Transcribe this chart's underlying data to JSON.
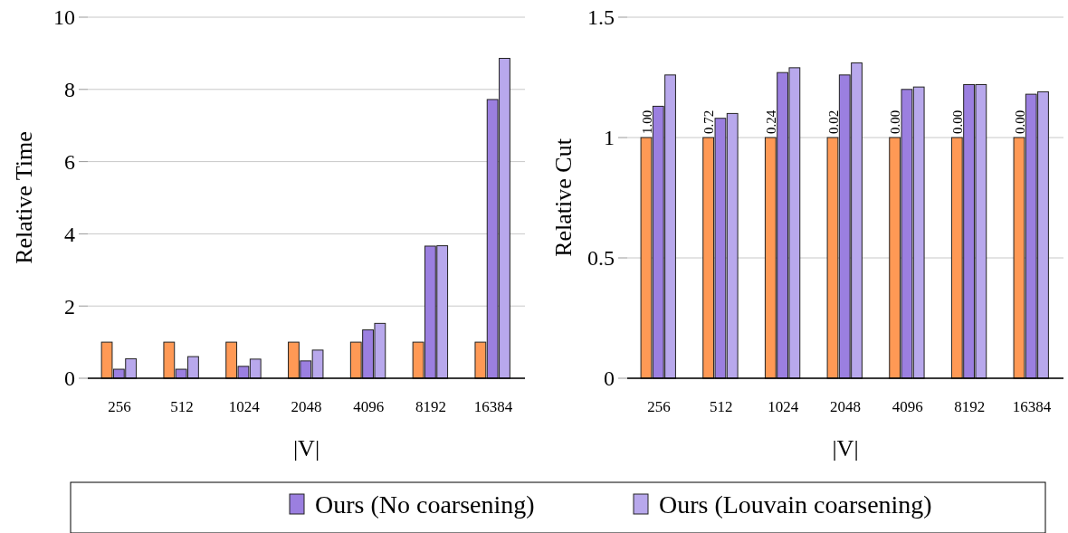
{
  "chart_data": [
    {
      "type": "bar",
      "xlabel": "|V|",
      "ylabel": "Relative Time",
      "categories": [
        "256",
        "512",
        "1024",
        "2048",
        "4096",
        "8192",
        "16384"
      ],
      "ylim": [
        0,
        10
      ],
      "yticks": [
        0,
        2,
        4,
        6,
        8,
        10
      ],
      "grid": "y",
      "legend": "bottom",
      "series": [
        {
          "color": "#ff9955",
          "values": [
            1,
            1,
            1,
            1,
            1,
            1,
            1
          ]
        },
        {
          "name": "Ours (No coarsening)",
          "color": "#9b7fe0",
          "values": [
            0.25,
            0.25,
            0.33,
            0.48,
            1.34,
            3.66,
            7.72
          ]
        },
        {
          "name": "Ours (Louvain coarsening)",
          "color": "#b8a8ec",
          "values": [
            0.54,
            0.6,
            0.53,
            0.78,
            1.52,
            3.67,
            8.86
          ]
        }
      ]
    },
    {
      "type": "bar",
      "xlabel": "|V|",
      "ylabel": "Relative Cut",
      "categories": [
        "256",
        "512",
        "1024",
        "2048",
        "4096",
        "8192",
        "16384"
      ],
      "ylim": [
        0,
        1.5
      ],
      "yticks": [
        0,
        0.5,
        1,
        1.5
      ],
      "grid": "y",
      "series": [
        {
          "color": "#ff9955",
          "values": [
            1,
            1,
            1,
            1,
            1,
            1,
            1
          ]
        },
        {
          "color": "#9b7fe0",
          "values": [
            1.13,
            1.08,
            1.27,
            1.26,
            1.2,
            1.22,
            1.18
          ]
        },
        {
          "color": "#b8a8ec",
          "values": [
            1.26,
            1.1,
            1.29,
            1.31,
            1.21,
            1.22,
            1.19
          ]
        }
      ],
      "annotations": [
        {
          "text": "1.00",
          "x": "256",
          "y": 1
        },
        {
          "text": "0.72",
          "x": "512",
          "y": 1
        },
        {
          "text": "0.24",
          "x": "1024",
          "y": 1
        },
        {
          "text": "0.02",
          "x": "2048",
          "y": 1
        },
        {
          "text": "0.00",
          "x": "4096",
          "y": 1
        },
        {
          "text": "0.00",
          "x": "8192",
          "y": 1
        },
        {
          "text": "0.00",
          "x": "16384",
          "y": 1
        }
      ]
    }
  ]
}
